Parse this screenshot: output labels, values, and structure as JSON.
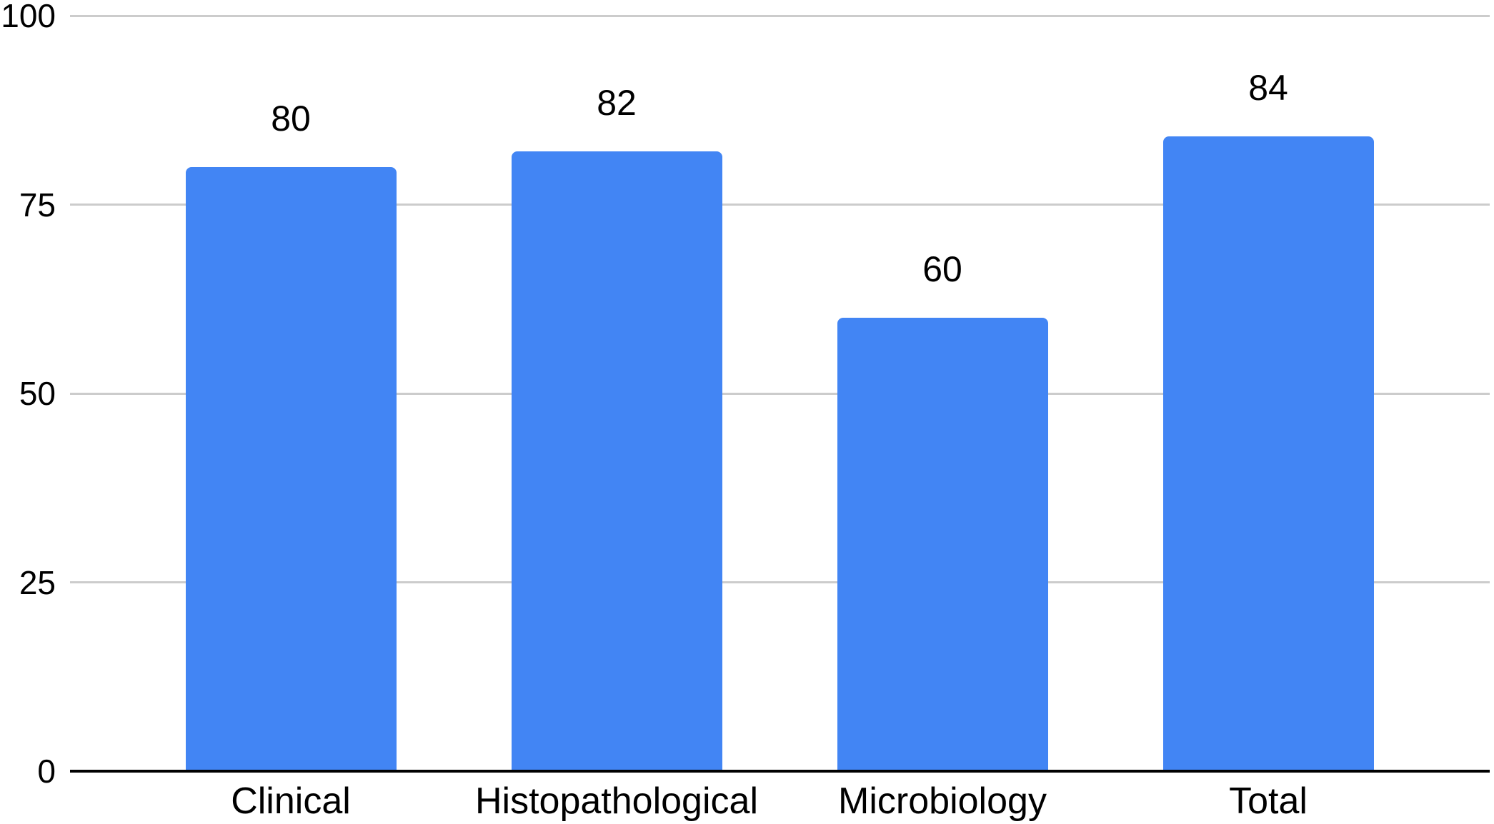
{
  "chart_data": {
    "type": "bar",
    "title": "",
    "xlabel": "",
    "ylabel": "",
    "categories": [
      "Clinical",
      "Histopathological",
      "Microbiology",
      "Total"
    ],
    "values": [
      80,
      82,
      60,
      84
    ],
    "value_labels": [
      "80",
      "82",
      "60",
      "84"
    ],
    "ylim": [
      0,
      100
    ],
    "yticks": [
      0,
      25,
      50,
      75,
      100
    ],
    "ytick_labels": [
      "0",
      "25",
      "50",
      "75",
      "100"
    ],
    "grid": true,
    "legend_position": "none",
    "colors": {
      "bar": "#4285F4",
      "gridline": "#cccccc",
      "axis": "#000000",
      "text": "#000000",
      "background": "#ffffff"
    }
  }
}
